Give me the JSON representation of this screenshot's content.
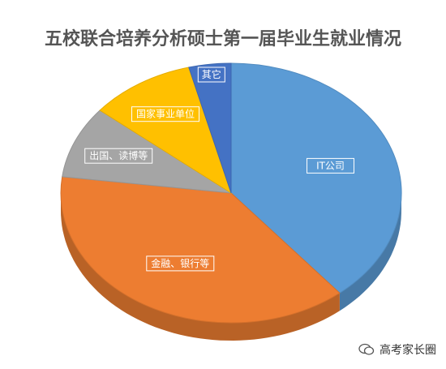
{
  "chart_data": {
    "type": "pie",
    "title": "五校联合培养分析硕士第一届毕业生就业情况",
    "slices": [
      {
        "label": "IT公司",
        "value": 39.0,
        "color": "#5b9bd5"
      },
      {
        "label": "金融、银行等",
        "value": 38.0,
        "color": "#ed7d31"
      },
      {
        "label": "出国、读博等",
        "value": 9.0,
        "color": "#a5a5a5"
      },
      {
        "label": "国家事业单位",
        "value": 10.0,
        "color": "#ffc000"
      },
      {
        "label": "其它",
        "value": 4.0,
        "color": "#4472c4"
      }
    ],
    "start_angle_deg": -90,
    "direction": "clockwise",
    "legend": "none",
    "data_labels": "category names inside slices"
  },
  "watermark": {
    "text": "高考家长圈",
    "icon": "wechat-icon"
  }
}
